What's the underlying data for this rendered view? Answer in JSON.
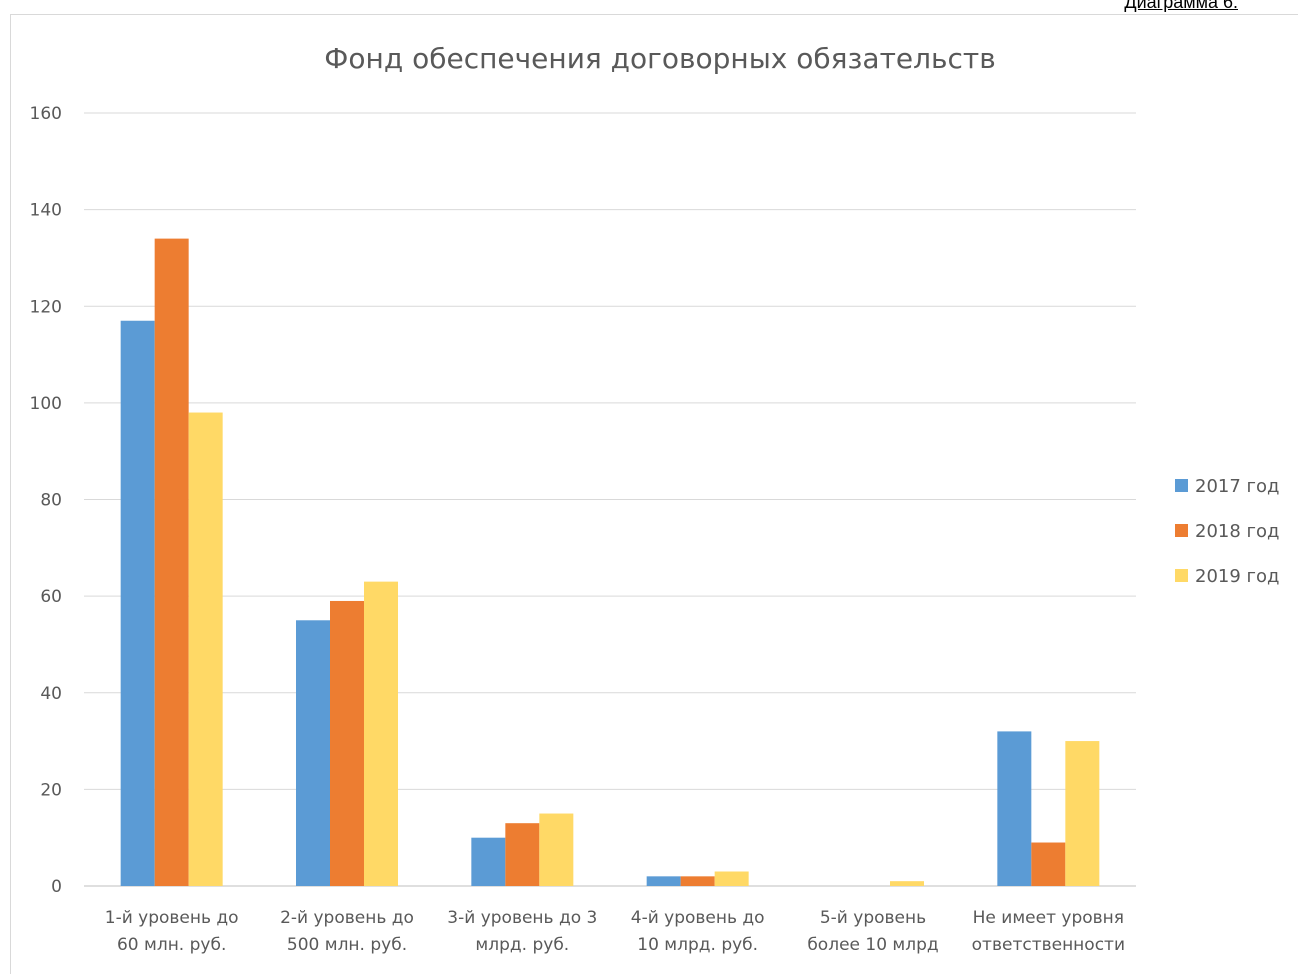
{
  "page": {
    "corner_label": "Диаграмма 6."
  },
  "chart_data": {
    "type": "bar",
    "title": "Фонд обеспечения договорных обязательств",
    "xlabel": "",
    "ylabel": "",
    "ylim": [
      0,
      160
    ],
    "yticks": [
      0,
      20,
      40,
      60,
      80,
      100,
      120,
      140,
      160
    ],
    "grid": true,
    "legend_position": "right",
    "categories": [
      [
        "1-й уровень до",
        "60 млн. руб."
      ],
      [
        "2-й уровень до",
        "500 млн. руб."
      ],
      [
        "3-й уровень до 3",
        "млрд. руб."
      ],
      [
        "4-й уровень до",
        "10 млрд. руб."
      ],
      [
        "5-й уровень",
        "более 10 млрд"
      ],
      [
        "Не имеет уровня",
        "ответственности"
      ]
    ],
    "series": [
      {
        "name": "2017 год",
        "color": "#5b9bd5",
        "values": [
          117,
          55,
          10,
          2,
          0,
          32
        ]
      },
      {
        "name": "2018 год",
        "color": "#ed7d31",
        "values": [
          134,
          59,
          13,
          2,
          0,
          9
        ]
      },
      {
        "name": "2019 год",
        "color": "#ffd966",
        "values": [
          98,
          63,
          15,
          3,
          1,
          30
        ]
      }
    ]
  }
}
